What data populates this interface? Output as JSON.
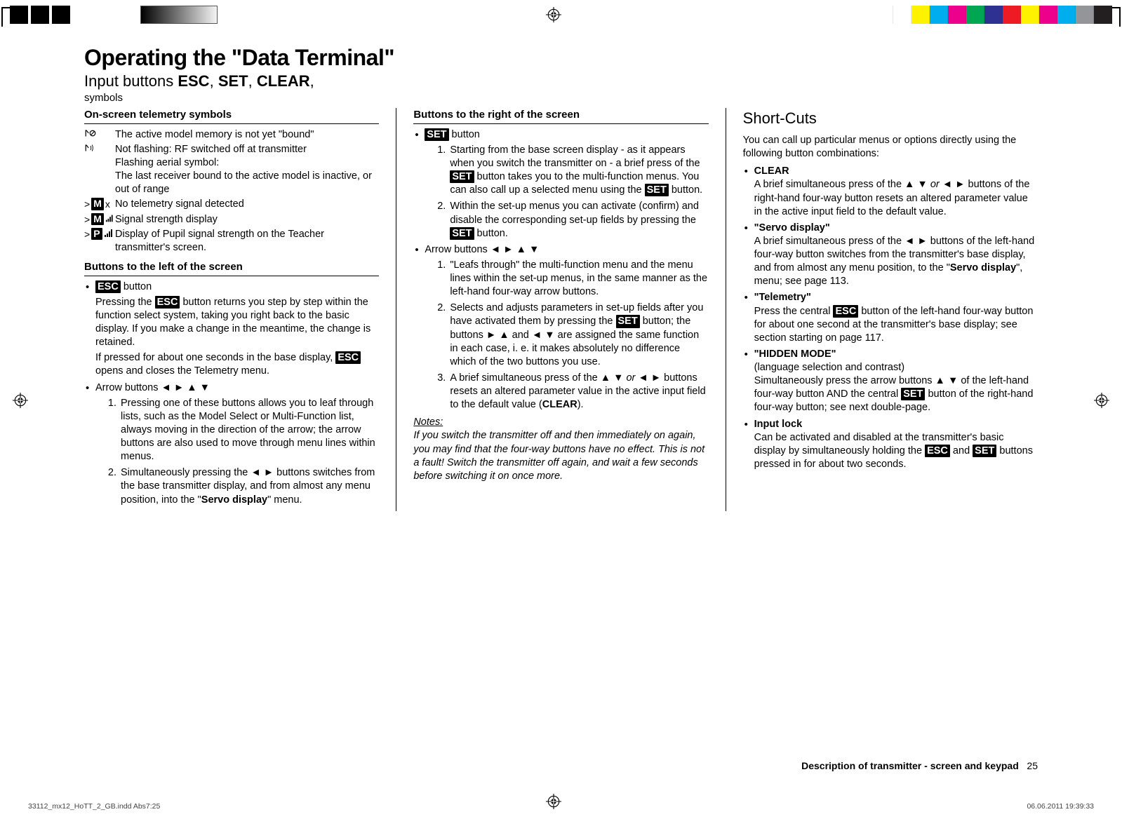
{
  "printer_marks": {
    "color_squares": [
      "#ffffff",
      "#ffffff",
      "#fff200",
      "#00aeef",
      "#ec008c",
      "#00a651",
      "#2e3192",
      "#ed1c24",
      "#fff200",
      "#ec008c",
      "#00aeef",
      "#939598",
      "#231f20"
    ]
  },
  "title": "Operating the \"Data Terminal\"",
  "subtitle_prefix": "Input buttons ",
  "subtitle_b1": "ESC",
  "subtitle_sep1": ", ",
  "subtitle_b2": "SET",
  "subtitle_sep2": ", ",
  "subtitle_b3": "CLEAR",
  "subtitle_suffix": ",",
  "subsub": "symbols",
  "col1": {
    "head1": "On-screen telemetry symbols",
    "sym1_text": "The active model memory is not yet \"bound\"",
    "sym2_line1": "Not flashing: RF switched off at transmitter",
    "sym2_line2": "Flashing aerial symbol:",
    "sym2_line3": "The last receiver bound to the active model is inactive, or out of range",
    "sym3_prefix": ">",
    "sym3_badge": "M",
    "sym3_suffix": " x",
    "sym3_text": "No telemetry signal detected",
    "sym4_prefix": ">",
    "sym4_badge": "M",
    "sym4_text": "Signal strength display",
    "sym5_prefix": ">",
    "sym5_badge": "P",
    "sym5_text": "Display of Pupil signal strength on the Teacher transmitter's screen.",
    "head2": "Buttons to the left of the screen",
    "esc_btn": "ESC",
    "esc_btn_after": " button",
    "esc_p1a": "Pressing the ",
    "esc_p1b": "ESC",
    "esc_p1c": " button returns you step by step within the function select system, taking you right back to the basic display. If you make a change in the meantime, the change is retained.",
    "esc_p2a": "If pressed for about one seconds in the base display, ",
    "esc_p2b": "ESC",
    "esc_p2c": " opens and closes the Telemetry menu.",
    "arrow_label_pre": "Arrow buttons ",
    "arrow_glyphs": "◄ ►  ▲ ▼",
    "arrow_li1": "Pressing one of these buttons allows you to leaf through lists, such as the Model Select or Multi-Function list, always moving in the direction of the arrow; the arrow buttons are also used to move through menu lines within menus.",
    "arrow_li2a": "Simultaneously pressing the ◄ ► buttons switches from the base transmitter display, and from almost any menu position, into the \"",
    "arrow_li2b": "Servo display",
    "arrow_li2c": "\" menu."
  },
  "col2": {
    "head": "Buttons to the right of the screen",
    "set_btn": "SET",
    "set_btn_after": " button",
    "set_li1a": "Starting from the base screen display - as it appears when you switch the transmitter on - a brief press of the ",
    "set_li1b": "SET",
    "set_li1c": " button takes you to the multi-function menus. You can also call up a selected menu using the ",
    "set_li1d": "SET",
    "set_li1e": " button.",
    "set_li2a": "Within the set-up menus you can activate (confirm) and disable the corresponding set-up fields by pressing the ",
    "set_li2b": "SET",
    "set_li2c": " button.",
    "arrow_label_pre": "Arrow buttons ",
    "arrow_glyphs": "◄ ►  ▲ ▼",
    "arr_li1": "\"Leafs through\" the multi-function menu and the menu lines within the set-up menus, in the same manner as the left-hand four-way arrow buttons.",
    "arr_li2a": "Selects and adjusts parameters in set-up fields after you have activated them by pressing the ",
    "arr_li2b": "SET",
    "arr_li2c": " button; the buttons ► ▲ and ◄ ▼ are assigned the same function in each case, i. e. it makes absolutely no difference which of the two buttons you use.",
    "arr_li3a": "A brief simultaneous press of the ▲ ▼ ",
    "arr_li3_or": "or",
    "arr_li3b": " ◄ ► buttons resets an altered parameter value in the active input field to the default value (",
    "arr_li3c": "CLEAR",
    "arr_li3d": ").",
    "notes_head": "Notes:",
    "notes_body": "If you switch the transmitter off and then immediately on again, you may find that the four-way buttons have no effect. This is not a fault! Switch the transmitter off again, and wait a few seconds before switching it on once more."
  },
  "col3": {
    "title": "Short-Cuts",
    "intro": "You can call up particular menus or options directly using the following button combinations:",
    "items": {
      "clear": {
        "head": "CLEAR",
        "body_a": "A brief simultaneous press of the ▲ ▼ ",
        "body_or": "or",
        "body_b": " ◄ ► buttons of the right-hand four-way button resets an altered parameter value in the active input field to the default value."
      },
      "servo": {
        "head": "Servo display",
        "body_a": "A brief simultaneous press of the ◄ ► buttons of the left-hand four-way button switches from the transmitter's base display, and from almost any menu position, to the \"",
        "body_b": "Servo display",
        "body_c": "\", menu; see page 113."
      },
      "telemetry": {
        "head": "Telemetry",
        "body_a": "Press the central ",
        "body_b": "ESC",
        "body_c": " button of the left-hand four-way button for about one second at the transmitter's base display; see section starting on page 117."
      },
      "hidden": {
        "head": "HIDDEN MODE",
        "sub": "(language selection and contrast)",
        "body_a": "Simultaneously press the arrow buttons ▲ ▼ of the left-hand four-way button AND the central ",
        "body_b": "SET",
        "body_c": " button of the right-hand four-way button; see next double-page."
      },
      "inputlock": {
        "head": "Input lock",
        "body_a": "Can be activated and disabled at the transmitter's basic display by simultaneously holding the ",
        "body_b": "ESC",
        "body_c": " and ",
        "body_d": "SET",
        "body_e": " buttons pressed in for about two seconds."
      }
    }
  },
  "footer_label": "Description of transmitter - screen and keypad",
  "footer_page": "25",
  "indd": "33112_mx12_HoTT_2_GB.indd   Abs7:25",
  "timestamp": "06.06.2011   19:39:33"
}
